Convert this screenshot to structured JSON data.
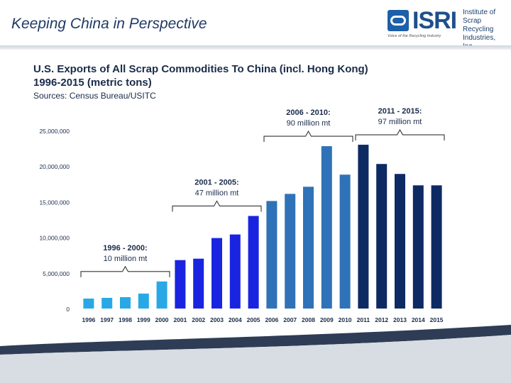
{
  "slide": {
    "title": "Keeping China in Perspective"
  },
  "logo": {
    "word": "ISRI",
    "line1": "Institute of",
    "line2": "Scrap Recycling",
    "line3": "Industries, Inc.",
    "tagline": "Voice of the Recycling Industry"
  },
  "colors": {
    "period_1996_2000": "#29a8e6",
    "period_2001_2005": "#1a24e0",
    "period_2006_2010": "#2f72b8",
    "period_2011_2015": "#0d2a63",
    "title_text": "#1f3a66"
  },
  "chart_data": {
    "type": "bar",
    "title_line1": "U.S. Exports of All Scrap Commodities To China (incl. Hong Kong)",
    "title_line2": "1996-2015 (metric tons)",
    "source": "Sources: Census Bureau/USITC",
    "ylim": [
      0,
      25000000
    ],
    "yticks": [
      "0",
      "5,000,000",
      "10,000,000",
      "15,000,000",
      "20,000,000",
      "25,000,000"
    ],
    "ytick_values": [
      0,
      5000000,
      10000000,
      15000000,
      20000000,
      25000000
    ],
    "categories": [
      "1996",
      "1997",
      "1998",
      "1999",
      "2000",
      "2001",
      "2002",
      "2003",
      "2004",
      "2005",
      "2006",
      "2007",
      "2008",
      "2009",
      "2010",
      "2011",
      "2012",
      "2013",
      "2014",
      "2015"
    ],
    "values": [
      1400000,
      1500000,
      1600000,
      2100000,
      3800000,
      6800000,
      7000000,
      9900000,
      10400000,
      13000000,
      15100000,
      16100000,
      17100000,
      22800000,
      18800000,
      23000000,
      20300000,
      18900000,
      17300000,
      17300000
    ],
    "groups": [
      {
        "label": "1996 - 2000:",
        "total": "10 million mt",
        "start": 0,
        "end": 4,
        "color_key": "period_1996_2000"
      },
      {
        "label": "2001 - 2005:",
        "total": "47 million mt",
        "start": 5,
        "end": 9,
        "color_key": "period_2001_2005"
      },
      {
        "label": "2006 - 2010:",
        "total": "90 million mt",
        "start": 10,
        "end": 14,
        "color_key": "period_2006_2010"
      },
      {
        "label": "2011 - 2015:",
        "total": "97 million mt",
        "start": 15,
        "end": 19,
        "color_key": "period_2011_2015"
      }
    ],
    "grid": false
  }
}
